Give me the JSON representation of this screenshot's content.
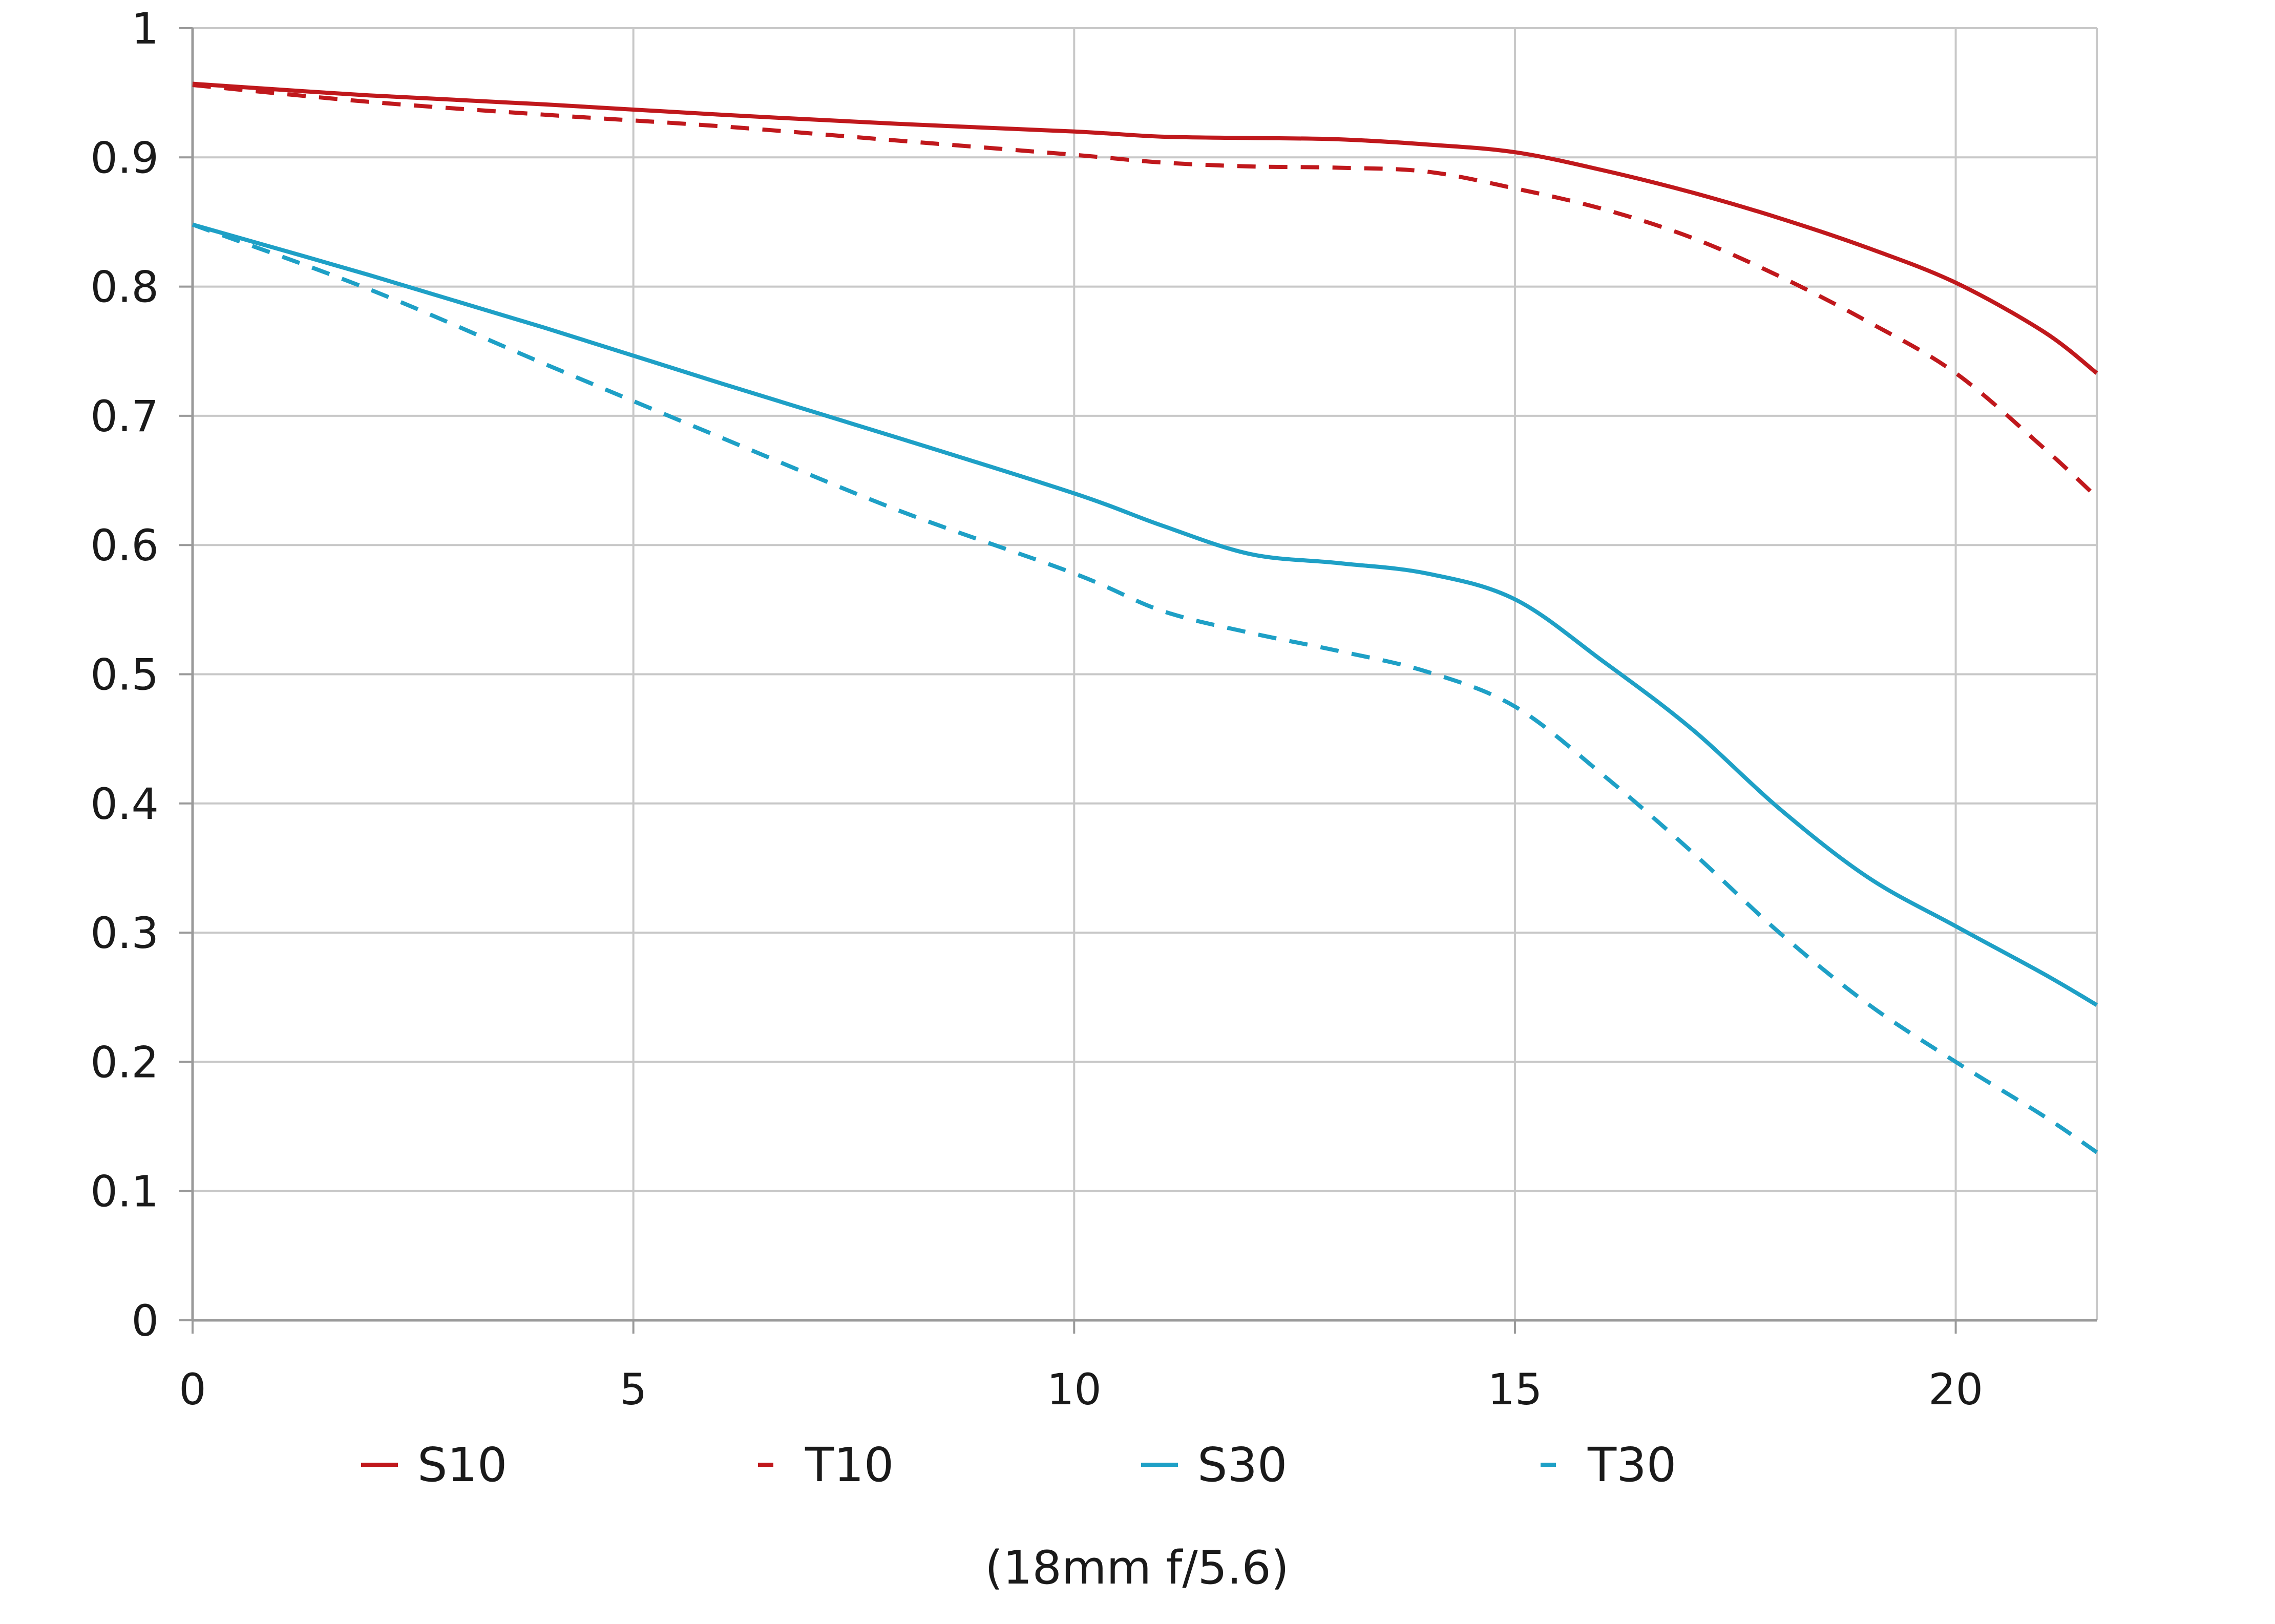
{
  "chart_data": {
    "type": "line",
    "title": "",
    "xlabel": "",
    "ylabel": "",
    "caption": "(18mm f/5.6)",
    "xlim": [
      0,
      21.6
    ],
    "ylim": [
      0,
      1
    ],
    "x_ticks": [
      0,
      5,
      10,
      15,
      20
    ],
    "x_tick_labels": [
      "0",
      "5",
      "10",
      "15",
      "20"
    ],
    "y_ticks": [
      0,
      0.1,
      0.2,
      0.3,
      0.4,
      0.5,
      0.6,
      0.7,
      0.8,
      0.9,
      1
    ],
    "y_tick_labels": [
      "0",
      "0.1",
      "0.2",
      "0.3",
      "0.4",
      "0.5",
      "0.6",
      "0.7",
      "0.8",
      "0.9",
      "1"
    ],
    "grid": true,
    "legend_position": "bottom",
    "series": [
      {
        "name": "S10",
        "color": "#c0181c",
        "dashed": false,
        "x": [
          0,
          2,
          4,
          6,
          8,
          10,
          11,
          12,
          13,
          14,
          15,
          16,
          17,
          18,
          19,
          20,
          21,
          21.6
        ],
        "y": [
          0.957,
          0.948,
          0.941,
          0.933,
          0.926,
          0.92,
          0.916,
          0.915,
          0.914,
          0.91,
          0.904,
          0.89,
          0.873,
          0.853,
          0.83,
          0.803,
          0.765,
          0.733
        ]
      },
      {
        "name": "T10",
        "color": "#c0181c",
        "dashed": true,
        "x": [
          0,
          2,
          4,
          6,
          8,
          10,
          11,
          12,
          13,
          14,
          15,
          16,
          17,
          18,
          19,
          20,
          21,
          21.6
        ],
        "y": [
          0.956,
          0.943,
          0.933,
          0.924,
          0.913,
          0.902,
          0.896,
          0.893,
          0.892,
          0.889,
          0.876,
          0.86,
          0.838,
          0.808,
          0.773,
          0.733,
          0.675,
          0.637
        ]
      },
      {
        "name": "S30",
        "color": "#1ea0c6",
        "dashed": false,
        "x": [
          0,
          2,
          4,
          6,
          8,
          10,
          11,
          12,
          13,
          14,
          15,
          16,
          17,
          18,
          19,
          20,
          21,
          21.6
        ],
        "y": [
          0.848,
          0.809,
          0.768,
          0.725,
          0.683,
          0.64,
          0.615,
          0.593,
          0.586,
          0.578,
          0.558,
          0.51,
          0.458,
          0.396,
          0.343,
          0.305,
          0.268,
          0.244
        ]
      },
      {
        "name": "T30",
        "color": "#1ea0c6",
        "dashed": true,
        "x": [
          0,
          2,
          4,
          6,
          8,
          10,
          11,
          12,
          13,
          14,
          15,
          16,
          17,
          18,
          19,
          20,
          21,
          21.6
        ],
        "y": [
          0.848,
          0.798,
          0.74,
          0.683,
          0.627,
          0.578,
          0.549,
          0.532,
          0.518,
          0.502,
          0.475,
          0.422,
          0.363,
          0.3,
          0.245,
          0.2,
          0.158,
          0.13
        ]
      }
    ]
  }
}
